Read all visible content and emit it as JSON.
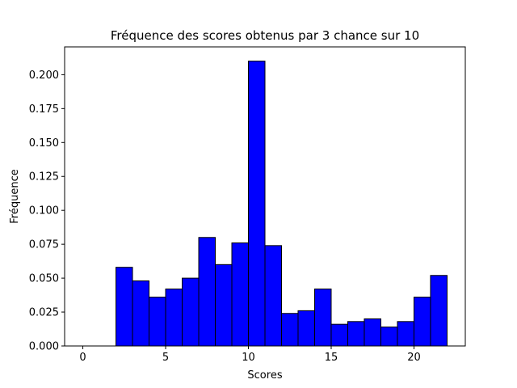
{
  "chart_data": {
    "type": "bar",
    "title": "Fréquence des scores obtenus par 3 chance sur 10",
    "xlabel": "Scores",
    "ylabel": "Fréquence",
    "xlim": [
      -1.1,
      23.1
    ],
    "ylim": [
      0,
      0.2205
    ],
    "xticks": [
      0,
      5,
      10,
      15,
      20
    ],
    "xtick_labels": [
      "0",
      "5",
      "10",
      "15",
      "20"
    ],
    "yticks": [
      0,
      0.025,
      0.05,
      0.075,
      0.1,
      0.125,
      0.15,
      0.175,
      0.2
    ],
    "ytick_labels": [
      "0.000",
      "0.025",
      "0.050",
      "0.075",
      "0.100",
      "0.125",
      "0.150",
      "0.175",
      "0.200"
    ],
    "bin_edges": [
      0,
      1,
      2,
      3,
      4,
      5,
      6,
      7,
      8,
      9,
      10,
      11,
      12,
      13,
      14,
      15,
      16,
      17,
      18,
      19,
      20,
      21,
      22
    ],
    "values": [
      0,
      0,
      0.058,
      0.048,
      0.036,
      0.042,
      0.05,
      0.08,
      0.06,
      0.076,
      0.21,
      0.074,
      0.024,
      0.026,
      0.042,
      0.016,
      0.018,
      0.02,
      0.014,
      0.018,
      0.036,
      0.052
    ],
    "bar_color": "#0000ff",
    "edge_color": "#000000",
    "grid": false
  }
}
